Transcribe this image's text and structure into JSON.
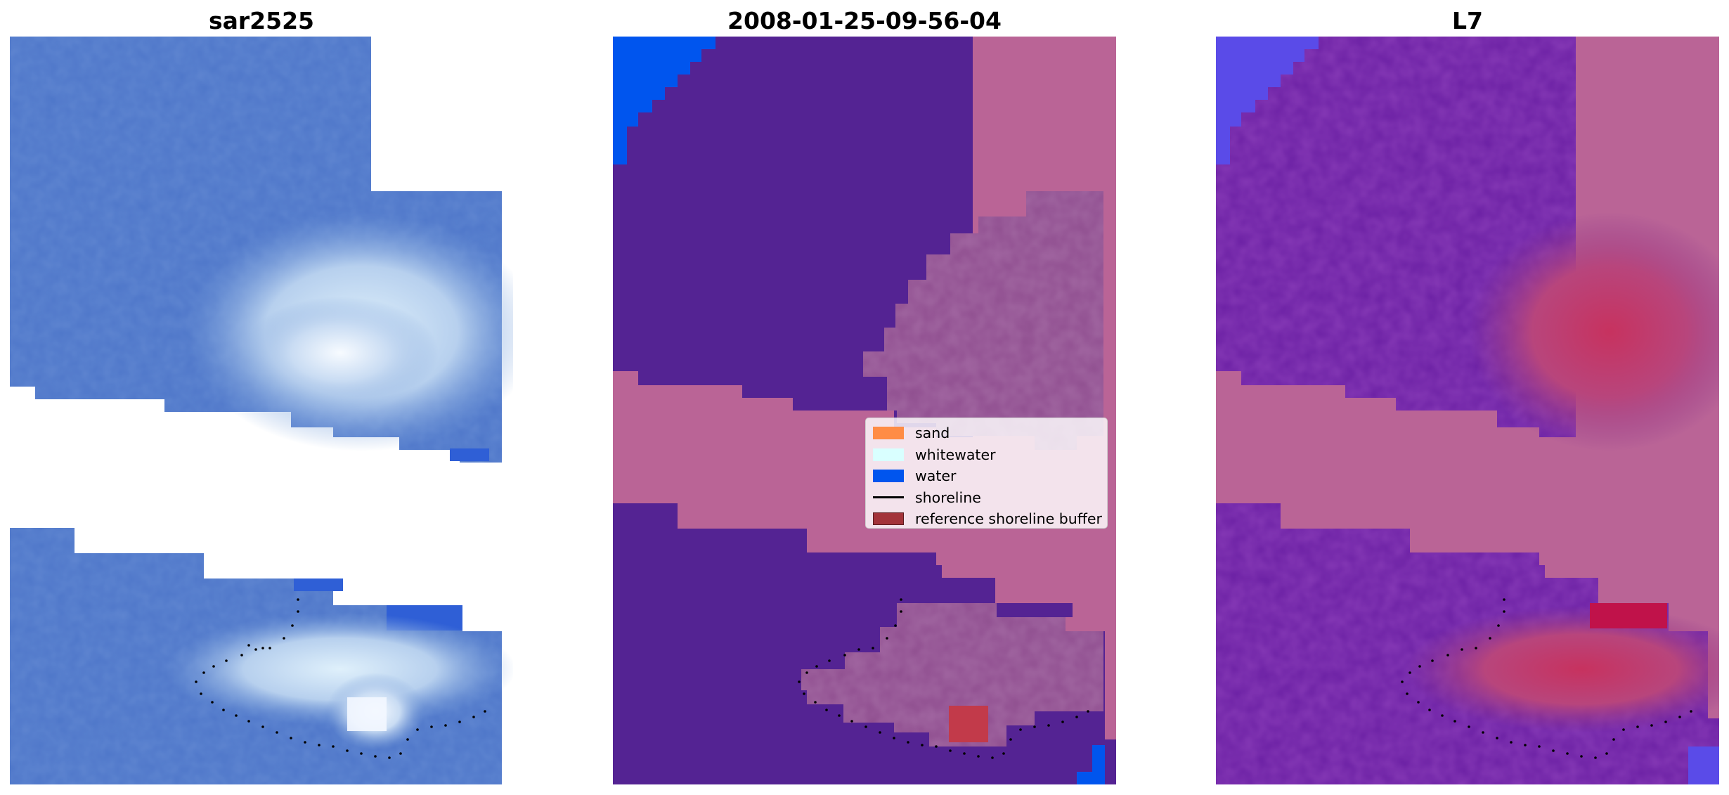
{
  "panels": [
    {
      "title": "sar2525"
    },
    {
      "title": "2008-01-25-09-56-04"
    },
    {
      "title": "L7"
    }
  ],
  "legend": {
    "items": [
      {
        "label": "sand",
        "color": "#ff8c45",
        "kind": "patch"
      },
      {
        "label": "whitewater",
        "color": "#d9ffff",
        "kind": "patch"
      },
      {
        "label": "water",
        "color": "#0055ee",
        "kind": "patch"
      },
      {
        "label": "shoreline",
        "color": "#000000",
        "kind": "line"
      },
      {
        "label": "reference shoreline buffer",
        "color": "#a3333a",
        "kind": "patch"
      }
    ]
  },
  "colors": {
    "water_class": "#0055ee",
    "deep_water_class": "#542393",
    "buffer_band": "#ba6496",
    "whitewater_mix": "#8f4e8f",
    "reference_buffer_patch": "#c23a4a",
    "rgb_water": "#4c74c8",
    "rgb_whitewater": "#c6dff2",
    "mndwi_base": "#6320a0",
    "mndwi_high": "#c7325f"
  }
}
